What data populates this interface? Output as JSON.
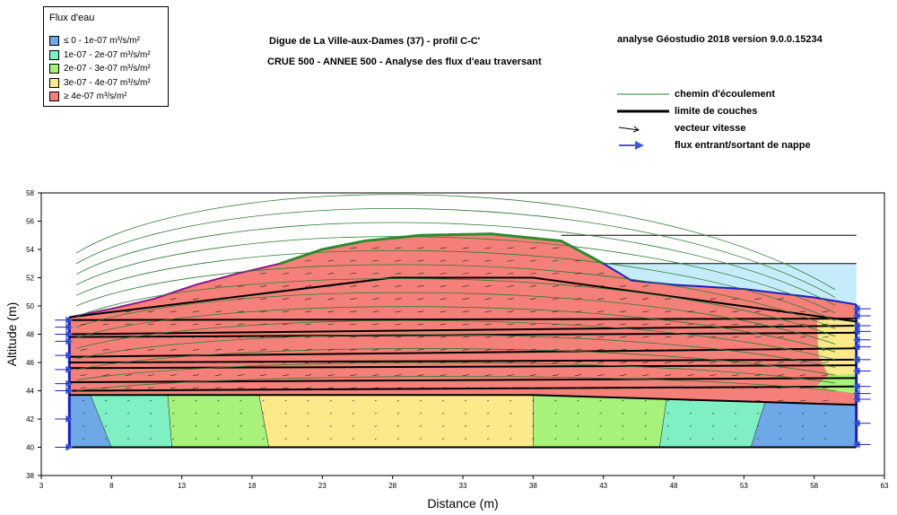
{
  "legend": {
    "title": "Flux d'eau",
    "items": [
      {
        "label": "≤ 0 - 1e-07 m³/s/m²",
        "color": "#6fa8e6"
      },
      {
        "label": "1e-07 - 2e-07 m³/s/m²",
        "color": "#7ff0c4"
      },
      {
        "label": "2e-07 - 3e-07 m³/s/m²",
        "color": "#a6f27a"
      },
      {
        "label": "3e-07 - 4e-07 m³/s/m²",
        "color": "#fbe98a"
      },
      {
        "label": "≥ 4e-07 m³/s/m²",
        "color": "#f5807a"
      }
    ]
  },
  "header": {
    "title_line1": "Digue de La Ville-aux-Dames (37) - profil C-C'",
    "title_line2": "CRUE 500 - ANNEE  500 - Analyse des flux d'eau traversant",
    "software": "analyse Géostudio 2018 version 9.0.0.15234"
  },
  "key": {
    "flowpath": "chemin d'écoulement",
    "layer_limit": "limite de couches",
    "velocity": "vecteur vitesse",
    "flux": "flux entrant/sortant de nappe"
  },
  "chart_data": {
    "type": "area",
    "xlabel": "Distance (m)",
    "ylabel": "Altitude (m)",
    "xlim": [
      3,
      63
    ],
    "ylim": [
      38,
      58
    ],
    "x_ticks": [
      3,
      8,
      13,
      18,
      23,
      28,
      33,
      38,
      43,
      48,
      53,
      58,
      63
    ],
    "y_ticks": [
      38,
      40,
      42,
      44,
      46,
      48,
      50,
      52,
      54,
      56,
      58
    ],
    "colors": {
      "low": "#6fa8e6",
      "c1": "#7ff0c4",
      "c2": "#a6f27a",
      "c3": "#fbe98a",
      "high": "#f5807a",
      "water": "#c6ecfb",
      "flowpath": "#2e7d32",
      "crest": "#2e8b2e",
      "slope_left": "#8b1a8b",
      "boundary": "#1f1fbf"
    },
    "ground_surface": [
      [
        5,
        49.2
      ],
      [
        8,
        49.8
      ],
      [
        11,
        50.5
      ],
      [
        14,
        51.5
      ],
      [
        17,
        52.3
      ],
      [
        20,
        53
      ],
      [
        23,
        54
      ],
      [
        26,
        54.6
      ],
      [
        30,
        55
      ],
      [
        35,
        55.1
      ],
      [
        40,
        54.6
      ],
      [
        43,
        53
      ],
      [
        45,
        51.8
      ],
      [
        48,
        51.5
      ],
      [
        53,
        51.2
      ],
      [
        58,
        50.6
      ],
      [
        61,
        50.1
      ]
    ],
    "base_elevation": 40,
    "x_range": [
      5,
      61
    ],
    "high_water_level": 55,
    "hwl_extent": [
      40,
      61
    ],
    "reservoir_level": 53,
    "reservoir_start": 43,
    "layer_limits": [
      [
        [
          5,
          49.2
        ],
        [
          28,
          52
        ],
        [
          38,
          52
        ],
        [
          61,
          48.9
        ]
      ],
      [
        [
          5,
          49
        ],
        [
          61,
          49.1
        ]
      ],
      [
        [
          5,
          48
        ],
        [
          61,
          48.6
        ]
      ],
      [
        [
          5,
          47.8
        ],
        [
          61,
          48.1
        ]
      ],
      [
        [
          5,
          46.4
        ],
        [
          61,
          47
        ]
      ],
      [
        [
          5,
          46
        ],
        [
          61,
          46.2
        ]
      ],
      [
        [
          5,
          45.6
        ],
        [
          61,
          45.8
        ]
      ],
      [
        [
          5,
          44.6
        ],
        [
          61,
          44.9
        ]
      ],
      [
        [
          5,
          44
        ],
        [
          61,
          44.3
        ]
      ],
      [
        [
          5,
          43.7
        ],
        [
          38,
          43.7
        ],
        [
          61,
          43
        ]
      ]
    ],
    "foundation_zones": [
      {
        "color": "#6fa8e6",
        "bottom": [
          5,
          8
        ],
        "top": [
          5,
          6.5
        ]
      },
      {
        "color": "#7ff0c4",
        "bottom": [
          8,
          12.3
        ],
        "top": [
          6.5,
          12
        ]
      },
      {
        "color": "#a6f27a",
        "bottom": [
          12.3,
          19.2
        ],
        "top": [
          12,
          18.5
        ]
      },
      {
        "color": "#fbe98a",
        "bottom": [
          19.2,
          38
        ],
        "top": [
          18.5,
          38
        ]
      },
      {
        "color": "#a6f27a",
        "bottom": [
          38,
          47
        ],
        "top": [
          38,
          47.5
        ]
      },
      {
        "color": "#7ff0c4",
        "bottom": [
          47,
          53.5
        ],
        "top": [
          47.5,
          54.5
        ]
      },
      {
        "color": "#6fa8e6",
        "bottom": [
          53.5,
          61
        ],
        "top": [
          54.5,
          61
        ]
      }
    ],
    "boundary_flux_left": [
      40,
      42,
      44,
      44.5,
      45.5,
      46.5,
      47.5,
      48,
      48.5,
      49
    ],
    "boundary_flux_right": [
      40.2,
      41.7,
      43.4,
      43.8,
      44.3,
      45.4,
      46.2,
      47.1,
      47.6,
      48.2,
      48.6,
      49.3,
      49.8
    ]
  }
}
